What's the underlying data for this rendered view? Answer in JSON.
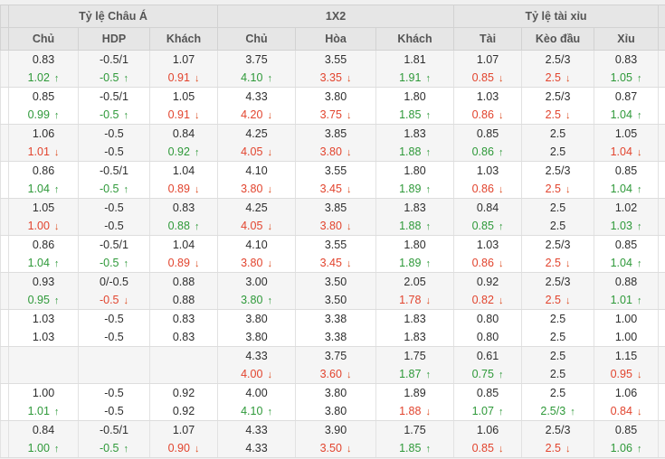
{
  "header": {
    "groups": [
      {
        "label": "Tỷ lệ Châu Á",
        "cols": [
          "Chủ",
          "HDP",
          "Khách"
        ]
      },
      {
        "label": "1X2",
        "cols": [
          "Chủ",
          "Hòa",
          "Khách"
        ]
      },
      {
        "label": "Tỷ lệ tài xỉu",
        "cols": [
          "Tài",
          "Kèo đầu",
          "Xỉu"
        ]
      }
    ]
  },
  "colors": {
    "up_green": "#2e9939",
    "down_red": "#e2442e",
    "arrow_down_orange": "#dd4a1e",
    "header_bg": "#e6e6e6",
    "alt_row_bg": "#f5f5f5"
  },
  "table": {
    "rows": [
      [
        [
          "0.83",
          "k",
          ""
        ],
        [
          "-0.5/1",
          "k",
          ""
        ],
        [
          "1.07",
          "k",
          ""
        ],
        [
          "3.75",
          "k",
          ""
        ],
        [
          "3.55",
          "k",
          ""
        ],
        [
          "1.81",
          "k",
          ""
        ],
        [
          "1.07",
          "k",
          ""
        ],
        [
          "2.5/3",
          "k",
          ""
        ],
        [
          "0.83",
          "k",
          ""
        ]
      ],
      [
        [
          "1.02",
          "g",
          "u"
        ],
        [
          "-0.5",
          "g",
          "u"
        ],
        [
          "0.91",
          "r",
          "d"
        ],
        [
          "4.10",
          "g",
          "u"
        ],
        [
          "3.35",
          "r",
          "d"
        ],
        [
          "1.91",
          "g",
          "u"
        ],
        [
          "0.85",
          "r",
          "d"
        ],
        [
          "2.5",
          "r",
          "d"
        ],
        [
          "1.05",
          "g",
          "u"
        ]
      ],
      [
        [
          "0.85",
          "k",
          ""
        ],
        [
          "-0.5/1",
          "k",
          ""
        ],
        [
          "1.05",
          "k",
          ""
        ],
        [
          "4.33",
          "k",
          ""
        ],
        [
          "3.80",
          "k",
          ""
        ],
        [
          "1.80",
          "k",
          ""
        ],
        [
          "1.03",
          "k",
          ""
        ],
        [
          "2.5/3",
          "k",
          ""
        ],
        [
          "0.87",
          "k",
          ""
        ]
      ],
      [
        [
          "0.99",
          "g",
          "u"
        ],
        [
          "-0.5",
          "g",
          "u"
        ],
        [
          "0.91",
          "r",
          "d"
        ],
        [
          "4.20",
          "r",
          "d"
        ],
        [
          "3.75",
          "r",
          "d"
        ],
        [
          "1.85",
          "g",
          "u"
        ],
        [
          "0.86",
          "r",
          "d"
        ],
        [
          "2.5",
          "r",
          "d"
        ],
        [
          "1.04",
          "g",
          "u"
        ]
      ],
      [
        [
          "1.06",
          "k",
          ""
        ],
        [
          "-0.5",
          "k",
          ""
        ],
        [
          "0.84",
          "k",
          ""
        ],
        [
          "4.25",
          "k",
          ""
        ],
        [
          "3.85",
          "k",
          ""
        ],
        [
          "1.83",
          "k",
          ""
        ],
        [
          "0.85",
          "k",
          ""
        ],
        [
          "2.5",
          "k",
          ""
        ],
        [
          "1.05",
          "k",
          ""
        ]
      ],
      [
        [
          "1.01",
          "r",
          "d"
        ],
        [
          "-0.5",
          "k",
          ""
        ],
        [
          "0.92",
          "g",
          "u"
        ],
        [
          "4.05",
          "r",
          "d"
        ],
        [
          "3.80",
          "r",
          "d"
        ],
        [
          "1.88",
          "g",
          "u"
        ],
        [
          "0.86",
          "g",
          "u"
        ],
        [
          "2.5",
          "k",
          ""
        ],
        [
          "1.04",
          "r",
          "d"
        ]
      ],
      [
        [
          "0.86",
          "k",
          ""
        ],
        [
          "-0.5/1",
          "k",
          ""
        ],
        [
          "1.04",
          "k",
          ""
        ],
        [
          "4.10",
          "k",
          ""
        ],
        [
          "3.55",
          "k",
          ""
        ],
        [
          "1.80",
          "k",
          ""
        ],
        [
          "1.03",
          "k",
          ""
        ],
        [
          "2.5/3",
          "k",
          ""
        ],
        [
          "0.85",
          "k",
          ""
        ]
      ],
      [
        [
          "1.04",
          "g",
          "u"
        ],
        [
          "-0.5",
          "g",
          "u"
        ],
        [
          "0.89",
          "r",
          "d"
        ],
        [
          "3.80",
          "r",
          "d"
        ],
        [
          "3.45",
          "r",
          "d"
        ],
        [
          "1.89",
          "g",
          "u"
        ],
        [
          "0.86",
          "r",
          "d"
        ],
        [
          "2.5",
          "r",
          "d"
        ],
        [
          "1.04",
          "g",
          "u"
        ]
      ],
      [
        [
          "1.05",
          "k",
          ""
        ],
        [
          "-0.5",
          "k",
          ""
        ],
        [
          "0.83",
          "k",
          ""
        ],
        [
          "4.25",
          "k",
          ""
        ],
        [
          "3.85",
          "k",
          ""
        ],
        [
          "1.83",
          "k",
          ""
        ],
        [
          "0.84",
          "k",
          ""
        ],
        [
          "2.5",
          "k",
          ""
        ],
        [
          "1.02",
          "k",
          ""
        ]
      ],
      [
        [
          "1.00",
          "r",
          "d"
        ],
        [
          "-0.5",
          "k",
          ""
        ],
        [
          "0.88",
          "g",
          "u"
        ],
        [
          "4.05",
          "r",
          "d"
        ],
        [
          "3.80",
          "r",
          "d"
        ],
        [
          "1.88",
          "g",
          "u"
        ],
        [
          "0.85",
          "g",
          "u"
        ],
        [
          "2.5",
          "k",
          ""
        ],
        [
          "1.03",
          "g",
          "u"
        ]
      ],
      [
        [
          "0.86",
          "k",
          ""
        ],
        [
          "-0.5/1",
          "k",
          ""
        ],
        [
          "1.04",
          "k",
          ""
        ],
        [
          "4.10",
          "k",
          ""
        ],
        [
          "3.55",
          "k",
          ""
        ],
        [
          "1.80",
          "k",
          ""
        ],
        [
          "1.03",
          "k",
          ""
        ],
        [
          "2.5/3",
          "k",
          ""
        ],
        [
          "0.85",
          "k",
          ""
        ]
      ],
      [
        [
          "1.04",
          "g",
          "u"
        ],
        [
          "-0.5",
          "g",
          "u"
        ],
        [
          "0.89",
          "r",
          "d"
        ],
        [
          "3.80",
          "r",
          "d"
        ],
        [
          "3.45",
          "r",
          "d"
        ],
        [
          "1.89",
          "g",
          "u"
        ],
        [
          "0.86",
          "r",
          "d"
        ],
        [
          "2.5",
          "r",
          "d"
        ],
        [
          "1.04",
          "g",
          "u"
        ]
      ],
      [
        [
          "0.93",
          "k",
          ""
        ],
        [
          "0/-0.5",
          "k",
          ""
        ],
        [
          "0.88",
          "k",
          ""
        ],
        [
          "3.00",
          "k",
          ""
        ],
        [
          "3.50",
          "k",
          ""
        ],
        [
          "2.05",
          "k",
          ""
        ],
        [
          "0.92",
          "k",
          ""
        ],
        [
          "2.5/3",
          "k",
          ""
        ],
        [
          "0.88",
          "k",
          ""
        ]
      ],
      [
        [
          "0.95",
          "g",
          "u"
        ],
        [
          "-0.5",
          "r",
          "d"
        ],
        [
          "0.88",
          "k",
          ""
        ],
        [
          "3.80",
          "g",
          "u"
        ],
        [
          "3.50",
          "k",
          ""
        ],
        [
          "1.78",
          "r",
          "d"
        ],
        [
          "0.82",
          "r",
          "d"
        ],
        [
          "2.5",
          "r",
          "d"
        ],
        [
          "1.01",
          "g",
          "u"
        ]
      ],
      [
        [
          "1.03",
          "k",
          ""
        ],
        [
          "-0.5",
          "k",
          ""
        ],
        [
          "0.83",
          "k",
          ""
        ],
        [
          "3.80",
          "k",
          ""
        ],
        [
          "3.38",
          "k",
          ""
        ],
        [
          "1.83",
          "k",
          ""
        ],
        [
          "0.80",
          "k",
          ""
        ],
        [
          "2.5",
          "k",
          ""
        ],
        [
          "1.00",
          "k",
          ""
        ]
      ],
      [
        [
          "1.03",
          "k",
          ""
        ],
        [
          "-0.5",
          "k",
          ""
        ],
        [
          "0.83",
          "k",
          ""
        ],
        [
          "3.80",
          "k",
          ""
        ],
        [
          "3.38",
          "k",
          ""
        ],
        [
          "1.83",
          "k",
          ""
        ],
        [
          "0.80",
          "k",
          ""
        ],
        [
          "2.5",
          "k",
          ""
        ],
        [
          "1.00",
          "k",
          ""
        ]
      ],
      [
        [
          "",
          "k",
          ""
        ],
        [
          "",
          "k",
          ""
        ],
        [
          "",
          "k",
          ""
        ],
        [
          "4.33",
          "k",
          ""
        ],
        [
          "3.75",
          "k",
          ""
        ],
        [
          "1.75",
          "k",
          ""
        ],
        [
          "0.61",
          "k",
          ""
        ],
        [
          "2.5",
          "k",
          ""
        ],
        [
          "1.15",
          "k",
          ""
        ]
      ],
      [
        [
          "",
          "k",
          ""
        ],
        [
          "",
          "k",
          ""
        ],
        [
          "",
          "k",
          ""
        ],
        [
          "4.00",
          "r",
          "d"
        ],
        [
          "3.60",
          "r",
          "d"
        ],
        [
          "1.87",
          "g",
          "u"
        ],
        [
          "0.75",
          "g",
          "u"
        ],
        [
          "2.5",
          "k",
          ""
        ],
        [
          "0.95",
          "r",
          "d"
        ]
      ],
      [
        [
          "1.00",
          "k",
          ""
        ],
        [
          "-0.5",
          "k",
          ""
        ],
        [
          "0.92",
          "k",
          ""
        ],
        [
          "4.00",
          "k",
          ""
        ],
        [
          "3.80",
          "k",
          ""
        ],
        [
          "1.89",
          "k",
          ""
        ],
        [
          "0.85",
          "k",
          ""
        ],
        [
          "2.5",
          "k",
          ""
        ],
        [
          "1.06",
          "k",
          ""
        ]
      ],
      [
        [
          "1.01",
          "g",
          "u"
        ],
        [
          "-0.5",
          "k",
          ""
        ],
        [
          "0.92",
          "k",
          ""
        ],
        [
          "4.10",
          "g",
          "u"
        ],
        [
          "3.80",
          "k",
          ""
        ],
        [
          "1.88",
          "r",
          "d"
        ],
        [
          "1.07",
          "g",
          "u"
        ],
        [
          "2.5/3",
          "g",
          "u"
        ],
        [
          "0.84",
          "r",
          "d"
        ]
      ],
      [
        [
          "0.84",
          "k",
          ""
        ],
        [
          "-0.5/1",
          "k",
          ""
        ],
        [
          "1.07",
          "k",
          ""
        ],
        [
          "4.33",
          "k",
          ""
        ],
        [
          "3.90",
          "k",
          ""
        ],
        [
          "1.75",
          "k",
          ""
        ],
        [
          "1.06",
          "k",
          ""
        ],
        [
          "2.5/3",
          "k",
          ""
        ],
        [
          "0.85",
          "k",
          ""
        ]
      ],
      [
        [
          "1.00",
          "g",
          "u"
        ],
        [
          "-0.5",
          "g",
          "u"
        ],
        [
          "0.90",
          "r",
          "d"
        ],
        [
          "4.33",
          "k",
          ""
        ],
        [
          "3.50",
          "r",
          "d"
        ],
        [
          "1.85",
          "g",
          "u"
        ],
        [
          "0.85",
          "r",
          "d"
        ],
        [
          "2.5",
          "r",
          "d"
        ],
        [
          "1.06",
          "g",
          "u"
        ]
      ]
    ]
  }
}
